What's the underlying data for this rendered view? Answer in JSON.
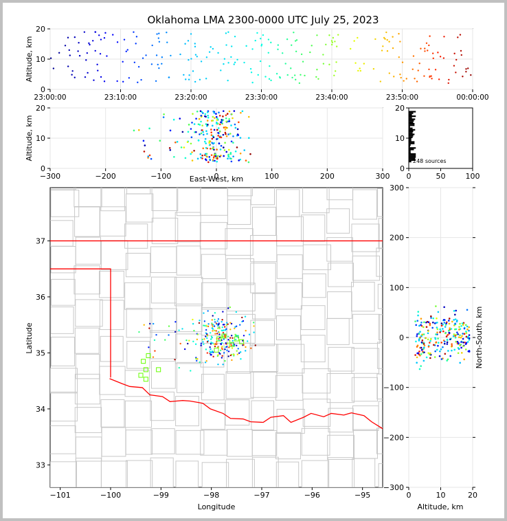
{
  "title": "Oklahoma LMA 2300-0000 UTC July 25, 2023",
  "colors": {
    "state_line": "#ff0000",
    "county_line": "#c8c8c8",
    "station": "#66ff00",
    "grid": "#e6e6e6"
  },
  "chart_data": [
    {
      "type": "scatter",
      "panel": "altitude-time",
      "ylabel": "Altitude, km",
      "ylim": [
        0,
        20
      ],
      "yticks": [
        "0",
        "10",
        "20"
      ],
      "xlim": [
        "23:00:00",
        "00:00:00"
      ],
      "xticks": [
        "23:00:00",
        "23:10:00",
        "23:20:00",
        "23:30:00",
        "23:40:00",
        "23:50:00",
        "00:00:00"
      ],
      "color_by": "time (blue = early, red = late)"
    },
    {
      "type": "scatter",
      "panel": "altitude-eastwest",
      "ylabel": "Altitude, km",
      "xlabel": "East-West, km",
      "xlim": [
        -300,
        300
      ],
      "ylim": [
        0,
        20
      ],
      "xticks": [
        "−300",
        "−200",
        "−100",
        "0",
        "100",
        "200",
        "300"
      ],
      "yticks": [
        "0",
        "10",
        "20"
      ]
    },
    {
      "type": "histogram",
      "panel": "altitude-histogram",
      "annotation": "248 sources",
      "xlim": [
        0,
        100
      ],
      "ylim": [
        0,
        20
      ],
      "xticks": [
        "0",
        "50",
        "100"
      ],
      "yticks": [
        "0",
        "10",
        "20"
      ]
    },
    {
      "type": "scatter",
      "panel": "plan-view-map",
      "xlabel": "Longitude",
      "ylabel": "Latitude",
      "xlim": [
        -101.2,
        -94.6
      ],
      "ylim": [
        32.6,
        37.95
      ],
      "xticks": [
        "−101",
        "−100",
        "−99",
        "−98",
        "−97",
        "−96",
        "−95"
      ],
      "yticks": [
        "33",
        "34",
        "35",
        "36",
        "37"
      ],
      "cluster_center": [
        -97.8,
        35.25
      ],
      "stations": [
        [
          -99.25,
          34.95
        ],
        [
          -99.35,
          34.85
        ],
        [
          -99.3,
          34.7
        ],
        [
          -99.05,
          34.7
        ],
        [
          -99.4,
          34.6
        ],
        [
          -99.3,
          34.53
        ],
        [
          -97.5,
          35.25
        ],
        [
          -97.4,
          35.2
        ],
        [
          -97.85,
          35.25
        ],
        [
          -97.75,
          35.3
        ],
        [
          -97.6,
          35.15
        ],
        [
          -97.9,
          35.05
        ]
      ]
    },
    {
      "type": "scatter",
      "panel": "northsouth-altitude",
      "xlabel": "Altitude, km",
      "ylabel": "North-South, km",
      "xlim": [
        0,
        20
      ],
      "ylim": [
        -300,
        300
      ],
      "xticks": [
        "0",
        "10",
        "20"
      ],
      "yticks": [
        "−300",
        "−200",
        "−100",
        "0",
        "100",
        "200",
        "300"
      ]
    }
  ]
}
